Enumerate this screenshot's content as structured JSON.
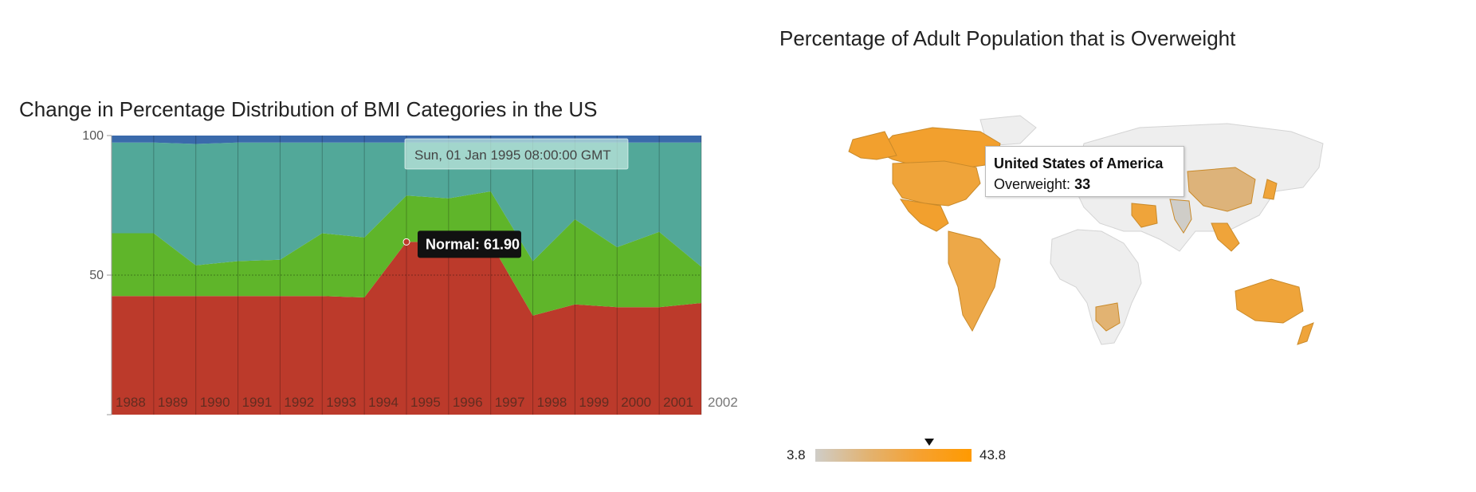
{
  "left_chart": {
    "title": "Change in Percentage Distribution of BMI Categories in the US",
    "hover_date": "Sun, 01 Jan 1995 08:00:00 GMT",
    "hover_label": "Normal: 61.90"
  },
  "right_chart": {
    "title": "Percentage of Adult Population that is Overweight",
    "tooltip_country": "United States of America",
    "tooltip_label": "Overweight:",
    "tooltip_value": "33",
    "legend_min": "3.8",
    "legend_max": "43.8"
  },
  "chart_data": [
    {
      "type": "area",
      "stacked": true,
      "title": "Change in Percentage Distribution of BMI Categories in the US",
      "x": [
        "1988",
        "1989",
        "1990",
        "1991",
        "1992",
        "1993",
        "1994",
        "1995",
        "1996",
        "1997",
        "1998",
        "1999",
        "2000",
        "2001",
        "2002"
      ],
      "ylim": [
        0,
        100
      ],
      "yticks": [
        100,
        50
      ],
      "series": [
        {
          "color": "#bc3a2b",
          "values": [
            42.5,
            42.5,
            42.5,
            42.5,
            42.5,
            42.5,
            42,
            61.9,
            61.9,
            61.5,
            35.5,
            39.5,
            38.5,
            38.5,
            40
          ]
        },
        {
          "color": "#5fb52a",
          "values": [
            22.5,
            22.5,
            11,
            12.5,
            13,
            22.5,
            21.5,
            16.6,
            15.6,
            18.5,
            19.5,
            30.5,
            21.5,
            27,
            13
          ]
        },
        {
          "color": "#52a899",
          "values": [
            32.5,
            32.5,
            43.5,
            42.5,
            42,
            32.5,
            34,
            19,
            20,
            17.5,
            42.5,
            27.5,
            37.5,
            32,
            44.5
          ]
        },
        {
          "color": "#3a6aab",
          "values": [
            2.5,
            2.5,
            3,
            2.5,
            2.5,
            2.5,
            2.5,
            2.5,
            2.5,
            2.5,
            2.5,
            2.5,
            2.5,
            2.5,
            2.5
          ]
        }
      ],
      "hover": {
        "x": "1995",
        "series_label": "Normal",
        "value": 61.9
      }
    },
    {
      "type": "choropleth-map",
      "title": "Percentage of Adult Population that is Overweight",
      "color_range": [
        3.8,
        43.8
      ],
      "colors": {
        "low": "#cfcdc8",
        "high": "#ff9a00",
        "no_data": "#eeeeee"
      },
      "highlighted": {
        "country": "United States of America",
        "value": 33
      }
    }
  ]
}
